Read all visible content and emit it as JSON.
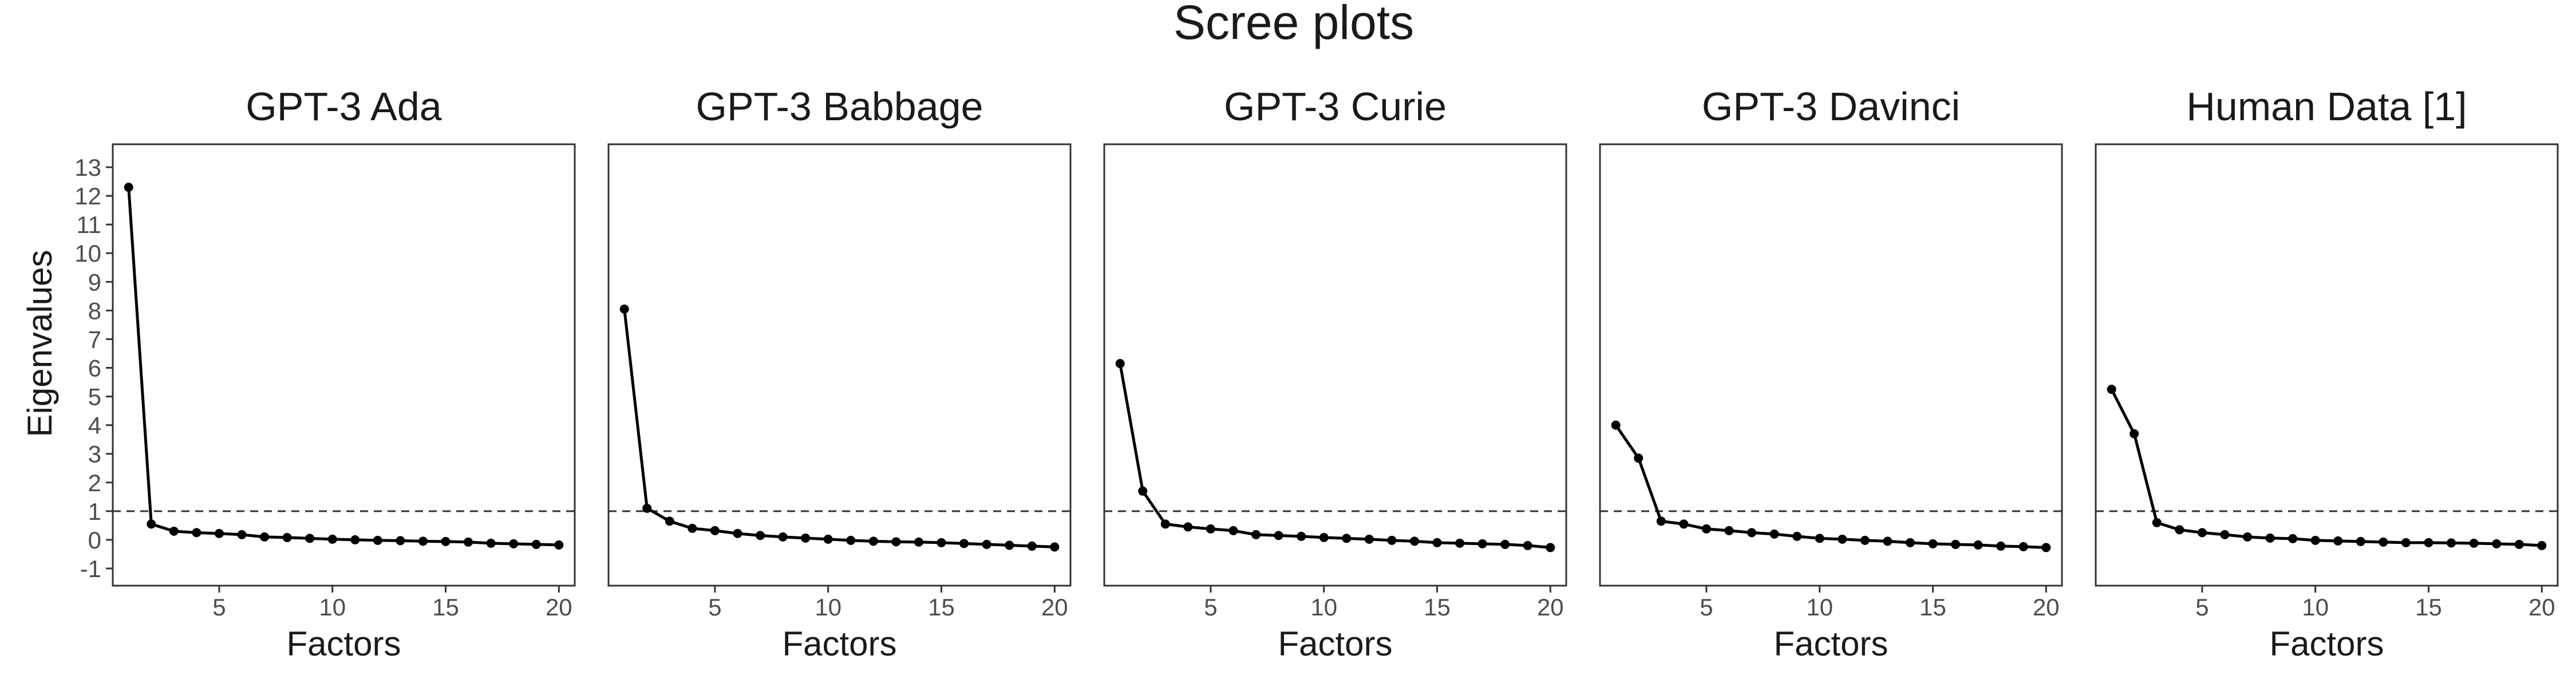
{
  "figure": {
    "title": "Scree plots",
    "x_label": "Factors",
    "y_label": "Eigenvalues"
  },
  "chart_data": [
    {
      "type": "line",
      "title": "GPT-3 Ada",
      "xlabel": "Factors",
      "ylabel": "Eigenvalues",
      "x": [
        1,
        2,
        3,
        4,
        5,
        6,
        7,
        8,
        9,
        10,
        11,
        12,
        13,
        14,
        15,
        16,
        17,
        18,
        19,
        20
      ],
      "values": [
        12.3,
        0.55,
        0.3,
        0.25,
        0.22,
        0.18,
        0.1,
        0.08,
        0.05,
        0.02,
        0.0,
        -0.02,
        -0.03,
        -0.05,
        -0.06,
        -0.08,
        -0.12,
        -0.14,
        -0.16,
        -0.18
      ],
      "reference_line": 1,
      "xticks": [
        5,
        10,
        15,
        20
      ],
      "yticks": [
        -1,
        0,
        1,
        2,
        3,
        4,
        5,
        6,
        7,
        8,
        9,
        10,
        11,
        12,
        13
      ],
      "show_yticks": true,
      "xlim": [
        0.3,
        20.7
      ],
      "ylim": [
        -1.6,
        13.8
      ],
      "grid": false
    },
    {
      "type": "line",
      "title": "GPT-3 Babbage",
      "xlabel": "Factors",
      "x": [
        1,
        2,
        3,
        4,
        5,
        6,
        7,
        8,
        9,
        10,
        11,
        12,
        13,
        14,
        15,
        16,
        17,
        18,
        19,
        20
      ],
      "values": [
        8.05,
        1.1,
        0.65,
        0.4,
        0.32,
        0.22,
        0.15,
        0.1,
        0.06,
        0.02,
        -0.02,
        -0.05,
        -0.07,
        -0.08,
        -0.1,
        -0.13,
        -0.16,
        -0.19,
        -0.22,
        -0.25
      ],
      "reference_line": 1,
      "xticks": [
        5,
        10,
        15,
        20
      ],
      "show_yticks": false,
      "xlim": [
        0.3,
        20.7
      ],
      "ylim": [
        -1.6,
        13.8
      ],
      "grid": false
    },
    {
      "type": "line",
      "title": "GPT-3 Curie",
      "xlabel": "Factors",
      "x": [
        1,
        2,
        3,
        4,
        5,
        6,
        7,
        8,
        9,
        10,
        11,
        12,
        13,
        14,
        15,
        16,
        17,
        18,
        19,
        20
      ],
      "values": [
        6.15,
        1.7,
        0.55,
        0.45,
        0.38,
        0.32,
        0.18,
        0.15,
        0.12,
        0.08,
        0.05,
        0.02,
        -0.02,
        -0.05,
        -0.1,
        -0.12,
        -0.14,
        -0.16,
        -0.2,
        -0.27
      ],
      "reference_line": 1,
      "xticks": [
        5,
        10,
        15,
        20
      ],
      "show_yticks": false,
      "xlim": [
        0.3,
        20.7
      ],
      "ylim": [
        -1.6,
        13.8
      ],
      "grid": false
    },
    {
      "type": "line",
      "title": "GPT-3 Davinci",
      "xlabel": "Factors",
      "x": [
        1,
        2,
        3,
        4,
        5,
        6,
        7,
        8,
        9,
        10,
        11,
        12,
        13,
        14,
        15,
        16,
        17,
        18,
        19,
        20
      ],
      "values": [
        4.0,
        2.85,
        0.65,
        0.55,
        0.38,
        0.32,
        0.25,
        0.2,
        0.12,
        0.05,
        0.02,
        -0.02,
        -0.05,
        -0.1,
        -0.14,
        -0.16,
        -0.18,
        -0.22,
        -0.24,
        -0.27
      ],
      "reference_line": 1,
      "xticks": [
        5,
        10,
        15,
        20
      ],
      "show_yticks": false,
      "xlim": [
        0.3,
        20.7
      ],
      "ylim": [
        -1.6,
        13.8
      ],
      "grid": false
    },
    {
      "type": "line",
      "title": "Human Data [1]",
      "xlabel": "Factors",
      "x": [
        1,
        2,
        3,
        4,
        5,
        6,
        7,
        8,
        9,
        10,
        11,
        12,
        13,
        14,
        15,
        16,
        17,
        18,
        19,
        20
      ],
      "values": [
        5.25,
        3.7,
        0.6,
        0.35,
        0.25,
        0.18,
        0.1,
        0.06,
        0.04,
        -0.02,
        -0.04,
        -0.06,
        -0.08,
        -0.1,
        -0.1,
        -0.11,
        -0.12,
        -0.14,
        -0.16,
        -0.2
      ],
      "reference_line": 1,
      "xticks": [
        5,
        10,
        15,
        20
      ],
      "show_yticks": false,
      "xlim": [
        0.3,
        20.7
      ],
      "ylim": [
        -1.6,
        13.8
      ],
      "grid": false
    }
  ]
}
